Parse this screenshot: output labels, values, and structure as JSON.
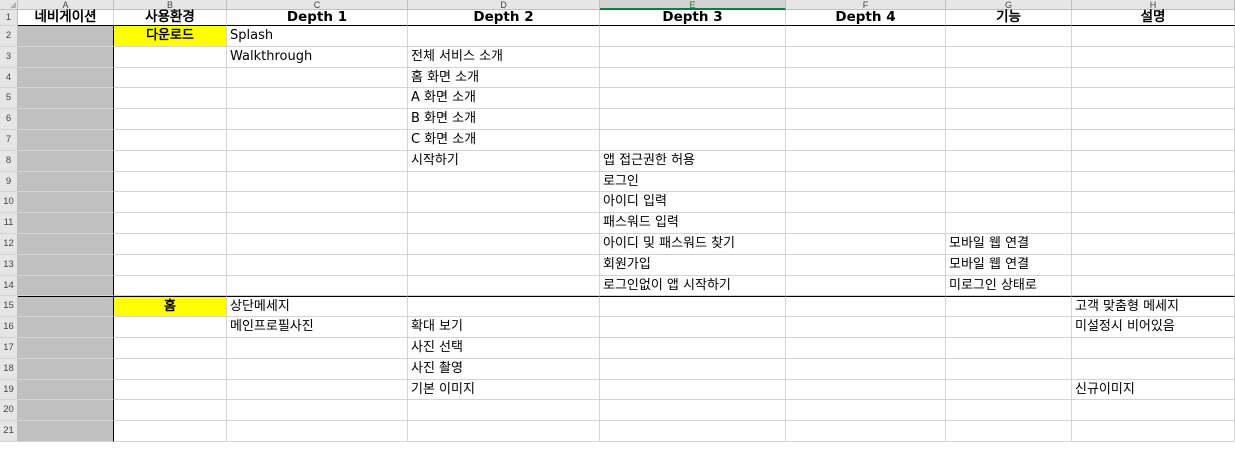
{
  "columns": [
    "A",
    "B",
    "C",
    "D",
    "E",
    "F",
    "G",
    "H"
  ],
  "selected_column": "E",
  "row_numbers": [
    "1",
    "2",
    "3",
    "4",
    "5",
    "6",
    "7",
    "8",
    "9",
    "10",
    "11",
    "12",
    "13",
    "14",
    "15",
    "16",
    "17",
    "18",
    "19",
    "20",
    "21"
  ],
  "header": {
    "a": "네비게이션",
    "b": "사용환경",
    "c": "Depth 1",
    "d": "Depth 2",
    "e": "Depth 3",
    "f": "Depth 4",
    "g": "기능",
    "h": "설명"
  },
  "rows": [
    {
      "b": "다운로드",
      "c": "Splash",
      "d": "",
      "e": "",
      "f": "",
      "g": "",
      "h": ""
    },
    {
      "b": "",
      "c": "Walkthrough",
      "d": "전체 서비스 소개",
      "e": "",
      "f": "",
      "g": "",
      "h": ""
    },
    {
      "b": "",
      "c": "",
      "d": "홈 화면 소개",
      "e": "",
      "f": "",
      "g": "",
      "h": ""
    },
    {
      "b": "",
      "c": "",
      "d": "A 화면 소개",
      "e": "",
      "f": "",
      "g": "",
      "h": ""
    },
    {
      "b": "",
      "c": "",
      "d": "B 화면 소개",
      "e": "",
      "f": "",
      "g": "",
      "h": ""
    },
    {
      "b": "",
      "c": "",
      "d": "C 화면 소개",
      "e": "",
      "f": "",
      "g": "",
      "h": ""
    },
    {
      "b": "",
      "c": "",
      "d": "시작하기",
      "e": "앱 접근권한 허용",
      "f": "",
      "g": "",
      "h": ""
    },
    {
      "b": "",
      "c": "",
      "d": "",
      "e": "로그인",
      "f": "",
      "g": "",
      "h": ""
    },
    {
      "b": "",
      "c": "",
      "d": "",
      "e": "아이디 입력",
      "f": "",
      "g": "",
      "h": ""
    },
    {
      "b": "",
      "c": "",
      "d": "",
      "e": "패스워드 입력",
      "f": "",
      "g": "",
      "h": ""
    },
    {
      "b": "",
      "c": "",
      "d": "",
      "e": "아이디 및 패스워드 찾기",
      "f": "",
      "g": "모바일 웹 연결",
      "h": ""
    },
    {
      "b": "",
      "c": "",
      "d": "",
      "e": "회원가입",
      "f": "",
      "g": "모바일 웹 연결",
      "h": ""
    },
    {
      "b": "",
      "c": "",
      "d": "",
      "e": "로그인없이 앱 시작하기",
      "f": "",
      "g": "미로그인 상태로",
      "h": ""
    },
    {
      "b": "홈",
      "c": "상단메세지",
      "d": "",
      "e": "",
      "f": "",
      "g": "",
      "h": "고객 맞춤형 메세지"
    },
    {
      "b": "",
      "c": "메인프로필사진",
      "d": "확대 보기",
      "e": "",
      "f": "",
      "g": "",
      "h": "미설정시 비어있음"
    },
    {
      "b": "",
      "c": "",
      "d": "사진 선택",
      "e": "",
      "f": "",
      "g": "",
      "h": ""
    },
    {
      "b": "",
      "c": "",
      "d": "사진 촬영",
      "e": "",
      "f": "",
      "g": "",
      "h": ""
    },
    {
      "b": "",
      "c": "",
      "d": "기본 이미지",
      "e": "",
      "f": "",
      "g": "",
      "h": "신규이미지"
    },
    {
      "b": "",
      "c": "",
      "d": "",
      "e": "",
      "f": "",
      "g": "",
      "h": ""
    },
    {
      "b": "",
      "c": "",
      "d": "",
      "e": "",
      "f": "",
      "g": "",
      "h": ""
    }
  ],
  "colors": {
    "nav_fill": "#c0c0c0",
    "highlight_yellow": "#ffff00",
    "selected_header_accent": "#217346"
  }
}
